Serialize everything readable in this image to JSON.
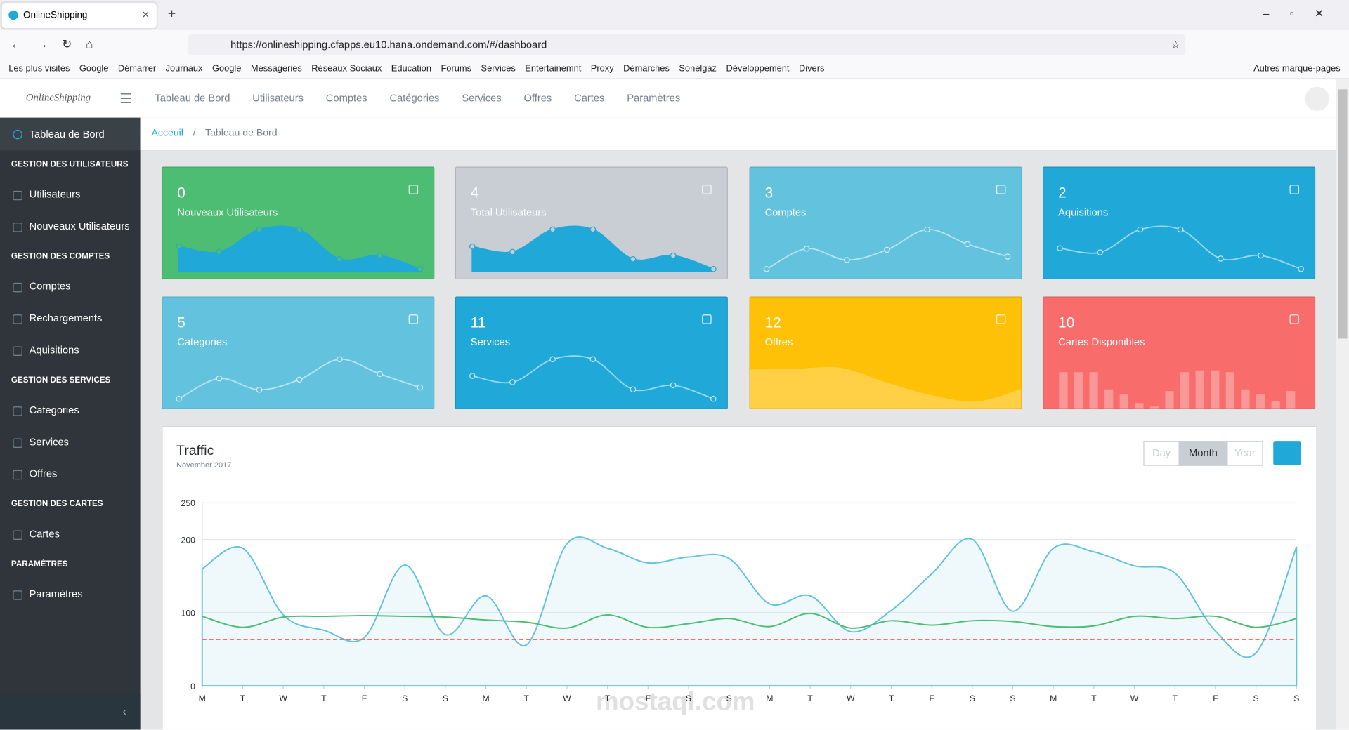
{
  "browser": {
    "tab_title": "OnlineShipping",
    "url": "https://onlineshipping.cfapps.eu10.hana.ondemand.com/#/dashboard",
    "bookmarks": [
      "Les plus visités",
      "Google",
      "Démarrer",
      "Journaux",
      "Google",
      "Messageries",
      "Réseaux Sociaux",
      "Education",
      "Forums",
      "Services",
      "Entertainemnt",
      "Proxy",
      "Démarches",
      "Sonelgaz",
      "Développement",
      "Divers"
    ],
    "other_bookmarks": "Autres marque-pages"
  },
  "app": {
    "brand": "OnlineShipping",
    "top_nav": [
      "Tableau de Bord",
      "Utilisateurs",
      "Comptes",
      "Catégories",
      "Services",
      "Offres",
      "Cartes",
      "Paramètres"
    ],
    "sidebar": [
      {
        "label": "Tableau de Bord",
        "kind": "link"
      },
      {
        "label": "GESTION DES UTILISATEURS",
        "kind": "section"
      },
      {
        "label": "Utilisateurs",
        "kind": "link"
      },
      {
        "label": "Nouveaux Utilisateurs",
        "kind": "link"
      },
      {
        "label": "GESTION DES COMPTES",
        "kind": "section"
      },
      {
        "label": "Comptes",
        "kind": "link"
      },
      {
        "label": "Rechargements",
        "kind": "link"
      },
      {
        "label": "Aquisitions",
        "kind": "link"
      },
      {
        "label": "GESTION DES SERVICES",
        "kind": "section"
      },
      {
        "label": "Categories",
        "kind": "link"
      },
      {
        "label": "Services",
        "kind": "link"
      },
      {
        "label": "Offres",
        "kind": "link"
      },
      {
        "label": "GESTION DES CARTES",
        "kind": "section"
      },
      {
        "label": "Cartes",
        "kind": "link"
      },
      {
        "label": "PARAMÈTRES",
        "kind": "section"
      },
      {
        "label": "Paramètres",
        "kind": "link"
      }
    ],
    "breadcrumb": [
      "Acceuil",
      "Tableau de Bord"
    ]
  },
  "cards": [
    {
      "value": 0,
      "label": "Nouveaux Utilisateurs",
      "color": "#4dbd74",
      "style": "filled-line",
      "values": [
        65,
        59,
        84,
        84,
        51,
        55,
        40
      ]
    },
    {
      "value": 4,
      "label": "Total Utilisateurs",
      "color": "#c8ced3",
      "style": "filled-line",
      "values": [
        65,
        59,
        84,
        84,
        51,
        55,
        40
      ]
    },
    {
      "value": 3,
      "label": "Comptes",
      "color": "#63c2de",
      "style": "line",
      "values": [
        15,
        33,
        23,
        32,
        50,
        37,
        26
      ]
    },
    {
      "value": 2,
      "label": "Aquisitions",
      "color": "#20a8d8",
      "style": "line",
      "values": [
        55,
        51,
        73,
        73,
        45,
        48,
        35
      ]
    },
    {
      "value": 5,
      "label": "Categories",
      "color": "#63c2de",
      "style": "line",
      "values": [
        20,
        38,
        28,
        37,
        55,
        42,
        30
      ]
    },
    {
      "value": 11,
      "label": "Services",
      "color": "#20a8d8",
      "style": "line",
      "values": [
        40,
        34,
        56,
        56,
        27,
        31,
        18
      ]
    },
    {
      "value": 12,
      "label": "Offres",
      "color": "#ffc107",
      "style": "area",
      "values": [
        45,
        46,
        47,
        30,
        15,
        8,
        23
      ]
    },
    {
      "value": 10,
      "label": "Cartes Disponibles",
      "color": "#f86c6b",
      "style": "bars",
      "values": [
        44,
        44,
        44,
        24,
        18,
        8,
        4,
        22,
        44,
        46,
        46,
        44,
        24,
        18,
        10,
        22
      ]
    }
  ],
  "chart_data": {
    "type": "line",
    "title": "Traffic",
    "subtitle": "November 2017",
    "range_buttons": [
      "Day",
      "Month",
      "Year"
    ],
    "active_range": 1,
    "categories": [
      "M",
      "T",
      "W",
      "T",
      "F",
      "S",
      "S",
      "M",
      "T",
      "W",
      "T",
      "F",
      "S",
      "S",
      "M",
      "T",
      "W",
      "T",
      "F",
      "S",
      "S",
      "M",
      "T",
      "W",
      "T",
      "F",
      "S",
      "S"
    ],
    "series": [
      {
        "color": "#63c2de",
        "fill": true,
        "values": [
          160,
          188,
          97,
          76,
          66,
          165,
          70,
          123,
          56,
          194,
          188,
          168,
          176,
          174,
          112,
          123,
          74,
          103,
          153,
          200,
          102,
          188,
          183,
          164,
          154,
          75,
          45,
          190
        ]
      },
      {
        "color": "#4dbd74",
        "fill": false,
        "values": [
          95,
          80,
          94,
          95,
          96,
          95,
          94,
          90,
          87,
          79,
          97,
          80,
          85,
          92,
          81,
          99,
          79,
          89,
          83,
          89,
          88,
          81,
          82,
          95,
          92,
          95,
          80,
          92
        ]
      }
    ],
    "reference_line": {
      "value": 63,
      "color": "#f86c6b"
    },
    "ylim": [
      0,
      250
    ],
    "yticks": [
      0,
      100,
      200,
      250
    ],
    "grid": true
  },
  "watermark": "mostaql.com"
}
